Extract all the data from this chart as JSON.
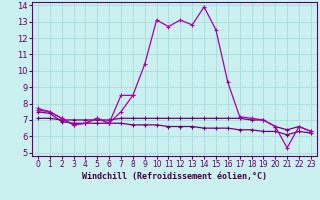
{
  "xlabel": "Windchill (Refroidissement éolien,°C)",
  "xlim": [
    -0.5,
    23.5
  ],
  "ylim": [
    4.8,
    14.2
  ],
  "xticks": [
    0,
    1,
    2,
    3,
    4,
    5,
    6,
    7,
    8,
    9,
    10,
    11,
    12,
    13,
    14,
    15,
    16,
    17,
    18,
    19,
    20,
    21,
    22,
    23
  ],
  "yticks": [
    5,
    6,
    7,
    8,
    9,
    10,
    11,
    12,
    13,
    14
  ],
  "bg_color": "#caf0f0",
  "grid_color": "#a0d8d8",
  "line_color1": "#aa00aa",
  "line_color2": "#770077",
  "line1_x": [
    0,
    1,
    2,
    3,
    4,
    5,
    6,
    7,
    8,
    9,
    10,
    11,
    12,
    13,
    14,
    15,
    16,
    17,
    18,
    19,
    20,
    21,
    22,
    23
  ],
  "line1_y": [
    7.6,
    7.5,
    7.1,
    6.7,
    6.8,
    7.1,
    6.8,
    7.5,
    8.5,
    10.4,
    13.1,
    12.7,
    13.1,
    12.8,
    13.9,
    12.5,
    9.3,
    7.2,
    7.1,
    7.0,
    6.6,
    5.3,
    6.6,
    6.3
  ],
  "line2_x": [
    0,
    1,
    2,
    3,
    4,
    5,
    6,
    7,
    8
  ],
  "line2_y": [
    7.7,
    7.5,
    7.1,
    6.7,
    6.8,
    7.1,
    6.8,
    8.5,
    8.5
  ],
  "line3_x": [
    0,
    1,
    2,
    3,
    4,
    5,
    6,
    7,
    8,
    9,
    10,
    11,
    12,
    13,
    14,
    15,
    16,
    17,
    18,
    19,
    20,
    21,
    22,
    23
  ],
  "line3_y": [
    7.1,
    7.1,
    7.0,
    7.0,
    7.0,
    7.0,
    7.0,
    7.1,
    7.1,
    7.1,
    7.1,
    7.1,
    7.1,
    7.1,
    7.1,
    7.1,
    7.1,
    7.1,
    7.0,
    7.0,
    6.6,
    6.4,
    6.6,
    6.3
  ],
  "line4_x": [
    0,
    1,
    2,
    3,
    4,
    5,
    6,
    7,
    8,
    9,
    10,
    11,
    12,
    13,
    14,
    15,
    16,
    17,
    18,
    19,
    20,
    21,
    22,
    23
  ],
  "line4_y": [
    7.5,
    7.4,
    6.9,
    6.8,
    6.8,
    6.8,
    6.8,
    6.8,
    6.7,
    6.7,
    6.7,
    6.6,
    6.6,
    6.6,
    6.5,
    6.5,
    6.5,
    6.4,
    6.4,
    6.3,
    6.3,
    6.1,
    6.3,
    6.2
  ]
}
